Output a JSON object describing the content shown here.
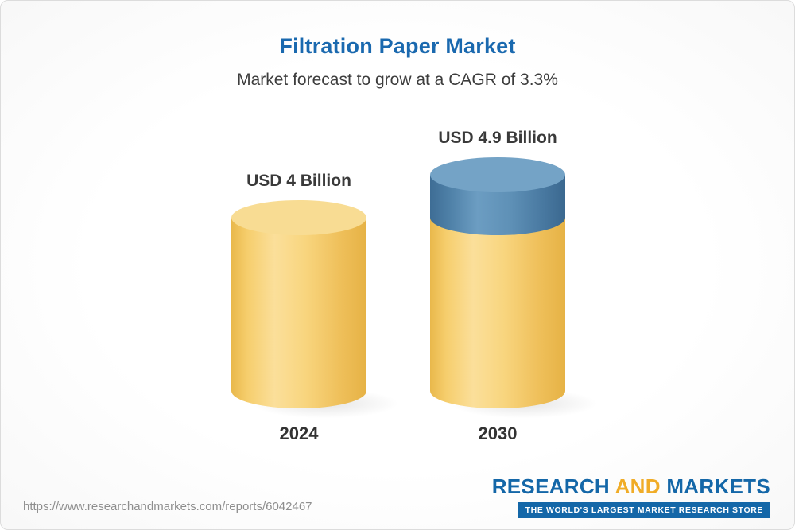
{
  "header": {
    "title": "Filtration Paper Market",
    "subtitle": "Market forecast to grow at a CAGR of 3.3%"
  },
  "chart_data": {
    "type": "bar",
    "title": "Filtration Paper Market",
    "subtitle": "Market forecast to grow at a CAGR of 3.3%",
    "bar_style": "3d-cylinder",
    "unit": "USD Billion",
    "cagr_percent": 3.3,
    "categories": [
      "2024",
      "2030"
    ],
    "values": [
      4,
      4.9
    ],
    "value_labels": [
      "USD 4 Billion",
      "USD 4.9 Billion"
    ],
    "legend": "none",
    "grid": false,
    "colors": {
      "bar_base": "#f5ce6f",
      "bar_base_top": "#f8dc93",
      "bar_growth": "#4e7fa6",
      "bar_growth_top": "#74a3c6",
      "title": "#1a69af",
      "subtitle": "#3d3d3d"
    }
  },
  "footer": {
    "url": "https://www.researchandmarkets.com/reports/6042467",
    "logo": {
      "research": "RESEARCH",
      "and": "AND",
      "markets": "MARKETS",
      "tagline": "THE WORLD'S LARGEST MARKET RESEARCH STORE"
    }
  }
}
